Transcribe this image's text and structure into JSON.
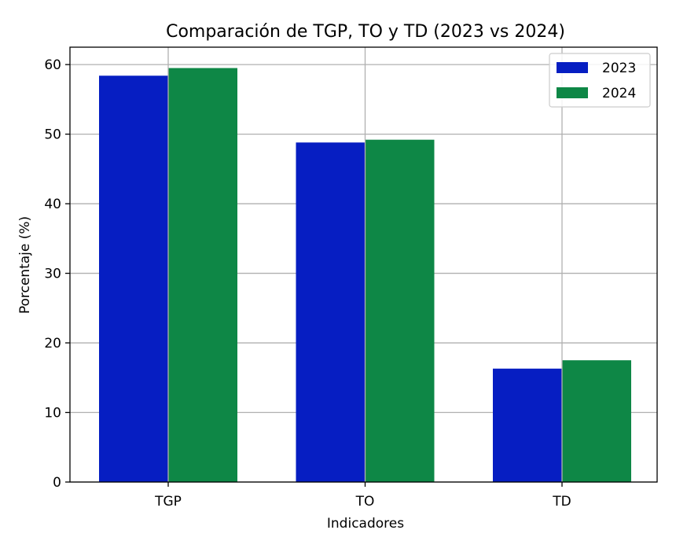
{
  "chart_data": {
    "type": "bar",
    "title": "Comparación de TGP, TO y TD (2023 vs 2024)",
    "xlabel": "Indicadores",
    "ylabel": "Porcentaje (%)",
    "categories": [
      "TGP",
      "TO",
      "TD"
    ],
    "series": [
      {
        "name": "2023",
        "values": [
          58.4,
          48.8,
          16.3
        ],
        "color": "#061ec2"
      },
      {
        "name": "2024",
        "values": [
          59.5,
          49.2,
          17.5
        ],
        "color": "#0e8746"
      }
    ],
    "ylim": [
      0,
      62.5
    ],
    "yticks": [
      0,
      10,
      20,
      30,
      40,
      50,
      60
    ],
    "grid": true,
    "legend_position": "top-right"
  }
}
